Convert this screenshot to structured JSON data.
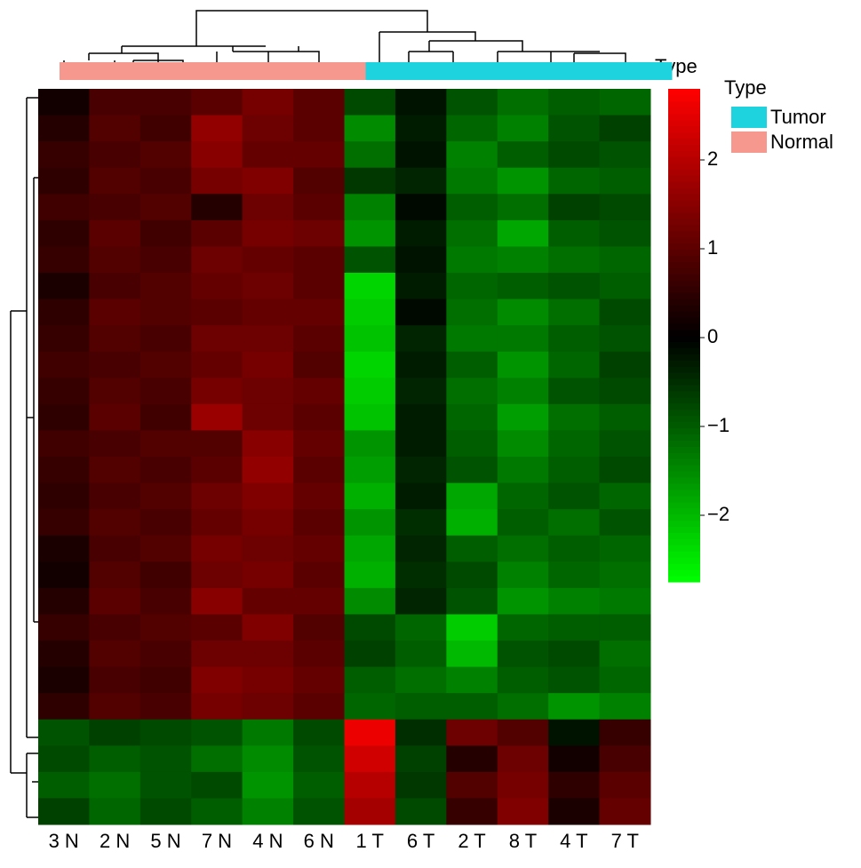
{
  "chart_data": {
    "type": "heatmap",
    "columns": [
      "3 N",
      "2 N",
      "5 N",
      "7 N",
      "4 N",
      "6 N",
      "1 T",
      "6 T",
      "2 T",
      "8 T",
      "4 T",
      "7 T"
    ],
    "annotation_label": "Type",
    "column_group": [
      1,
      1,
      1,
      1,
      1,
      1,
      0,
      0,
      0,
      0,
      0,
      0
    ],
    "legend": {
      "title": "Type",
      "items": [
        {
          "name": "Tumor",
          "color": "#1ed3de"
        },
        {
          "name": "Normal",
          "color": "#f7988f"
        }
      ]
    },
    "colors": {
      "low": "#00ff00",
      "mid": "#000000",
      "high": "#ff0000"
    },
    "zlim": [
      -2.75,
      2.8
    ],
    "zticks": [
      {
        "value": -2,
        "label": "−2"
      },
      {
        "value": -1,
        "label": "−1"
      },
      0,
      1,
      2
    ],
    "values": [
      [
        0.2,
        0.8,
        0.8,
        1.0,
        1.3,
        1.0,
        -0.8,
        -0.2,
        -0.9,
        -1.2,
        -1.0,
        -1.1
      ],
      [
        0.4,
        0.9,
        0.7,
        1.6,
        1.2,
        1.0,
        -1.5,
        -0.3,
        -1.1,
        -1.4,
        -0.9,
        -0.7
      ],
      [
        0.6,
        0.8,
        0.9,
        1.5,
        1.1,
        1.1,
        -1.2,
        -0.2,
        -1.4,
        -1.0,
        -0.8,
        -0.9
      ],
      [
        0.5,
        0.9,
        0.8,
        1.3,
        1.4,
        0.9,
        -0.6,
        -0.4,
        -1.3,
        -1.6,
        -1.1,
        -1.0
      ],
      [
        0.7,
        0.8,
        0.9,
        0.4,
        1.2,
        1.0,
        -1.4,
        -0.1,
        -1.0,
        -1.2,
        -0.7,
        -0.8
      ],
      [
        0.5,
        1.0,
        0.7,
        1.0,
        1.3,
        1.2,
        -1.6,
        -0.3,
        -1.2,
        -1.8,
        -1.0,
        -0.9
      ],
      [
        0.6,
        0.9,
        0.8,
        1.2,
        1.1,
        1.0,
        -0.9,
        -0.2,
        -1.3,
        -1.4,
        -1.2,
        -1.1
      ],
      [
        0.3,
        0.8,
        0.9,
        1.1,
        1.2,
        1.0,
        -2.3,
        -0.3,
        -1.1,
        -1.0,
        -0.9,
        -1.0
      ],
      [
        0.5,
        1.0,
        0.9,
        1.0,
        1.1,
        1.1,
        -2.2,
        -0.1,
        -1.2,
        -1.5,
        -1.2,
        -0.8
      ],
      [
        0.6,
        0.9,
        0.8,
        1.2,
        1.2,
        1.0,
        -2.1,
        -0.4,
        -1.3,
        -1.3,
        -1.0,
        -0.9
      ],
      [
        0.7,
        0.8,
        0.9,
        1.1,
        1.3,
        0.9,
        -2.3,
        -0.3,
        -1.0,
        -1.6,
        -1.1,
        -0.7
      ],
      [
        0.6,
        0.9,
        0.8,
        1.3,
        1.2,
        1.1,
        -2.2,
        -0.4,
        -1.2,
        -1.4,
        -0.9,
        -0.8
      ],
      [
        0.5,
        1.0,
        0.7,
        1.7,
        1.2,
        1.0,
        -2.1,
        -0.3,
        -1.1,
        -1.7,
        -1.2,
        -1.0
      ],
      [
        0.7,
        0.8,
        0.9,
        0.9,
        1.5,
        1.1,
        -1.6,
        -0.3,
        -1.0,
        -1.5,
        -1.1,
        -0.9
      ],
      [
        0.6,
        0.9,
        0.8,
        1.0,
        1.6,
        1.0,
        -1.7,
        -0.4,
        -0.9,
        -1.3,
        -1.0,
        -0.8
      ],
      [
        0.5,
        0.8,
        0.9,
        1.2,
        1.4,
        1.1,
        -1.9,
        -0.3,
        -1.8,
        -1.1,
        -0.9,
        -1.1
      ],
      [
        0.6,
        0.9,
        0.8,
        1.1,
        1.3,
        1.0,
        -1.6,
        -0.5,
        -1.9,
        -1.0,
        -1.2,
        -0.9
      ],
      [
        0.3,
        0.8,
        0.9,
        1.3,
        1.2,
        1.1,
        -1.8,
        -0.4,
        -1.0,
        -1.2,
        -1.0,
        -1.1
      ],
      [
        0.2,
        0.9,
        0.7,
        1.2,
        1.3,
        1.0,
        -1.9,
        -0.5,
        -0.8,
        -1.4,
        -1.1,
        -1.2
      ],
      [
        0.4,
        1.0,
        0.8,
        1.5,
        1.1,
        1.1,
        -1.5,
        -0.4,
        -0.9,
        -1.6,
        -1.4,
        -1.3
      ],
      [
        0.6,
        0.8,
        0.9,
        1.0,
        1.4,
        0.9,
        -0.8,
        -1.1,
        -2.2,
        -1.1,
        -1.0,
        -1.0
      ],
      [
        0.4,
        0.9,
        0.8,
        1.2,
        1.2,
        1.0,
        -0.7,
        -1.0,
        -2.0,
        -0.9,
        -0.8,
        -1.2
      ],
      [
        0.3,
        0.8,
        0.7,
        1.4,
        1.3,
        1.1,
        -1.0,
        -1.2,
        -1.4,
        -1.0,
        -0.9,
        -1.1
      ],
      [
        0.5,
        0.9,
        0.8,
        1.3,
        1.2,
        1.0,
        -1.1,
        -1.0,
        -1.0,
        -1.2,
        -1.6,
        -1.4
      ],
      [
        -0.9,
        -0.7,
        -0.8,
        -0.9,
        -1.3,
        -0.8,
        2.6,
        -0.5,
        1.2,
        0.9,
        -0.2,
        0.6
      ],
      [
        -0.8,
        -1.0,
        -0.9,
        -1.2,
        -1.5,
        -0.9,
        2.3,
        -0.7,
        0.4,
        1.2,
        0.2,
        0.8
      ],
      [
        -1.0,
        -1.2,
        -0.9,
        -0.8,
        -1.6,
        -1.0,
        2.0,
        -0.6,
        0.9,
        1.3,
        0.5,
        1.0
      ],
      [
        -0.7,
        -1.1,
        -0.8,
        -1.0,
        -1.4,
        -0.9,
        1.8,
        -0.8,
        0.6,
        1.4,
        0.3,
        1.1
      ]
    ]
  }
}
